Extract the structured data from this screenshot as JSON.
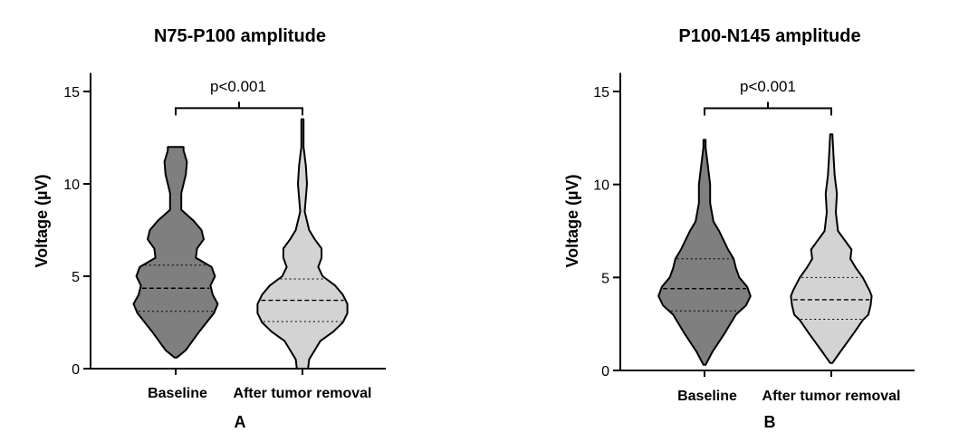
{
  "figure": {
    "colors": {
      "baseline": "#7f7f7f",
      "after": "#d3d3d3",
      "stroke": "#000000"
    }
  },
  "chart_data": [
    {
      "type": "violin",
      "title": "N75-P100 amplitude",
      "ylabel": "Voltage (µV)",
      "xlabel": "",
      "panel_label": "A",
      "ylim": [
        0,
        16
      ],
      "yticks": [
        0,
        5,
        10,
        15
      ],
      "ytick_labels": [
        "0",
        "5",
        "10",
        "15"
      ],
      "grid": false,
      "categories": [
        "Baseline",
        "After tumor removal"
      ],
      "annotation": {
        "text": "p<0.001",
        "between": [
          "Baseline",
          "After tumor removal"
        ],
        "y": 14.1
      },
      "series": [
        {
          "category": "Baseline",
          "min": 0.6,
          "max": 12.0,
          "q1": 3.1,
          "median": 4.35,
          "q3": 5.6,
          "density_profile": [
            [
              0.6,
              0.02
            ],
            [
              1.0,
              0.18
            ],
            [
              2.0,
              0.42
            ],
            [
              3.0,
              0.68
            ],
            [
              3.5,
              0.75
            ],
            [
              4.0,
              0.66
            ],
            [
              4.5,
              0.62
            ],
            [
              5.0,
              0.7
            ],
            [
              5.5,
              0.64
            ],
            [
              6.0,
              0.36
            ],
            [
              6.5,
              0.38
            ],
            [
              7.0,
              0.5
            ],
            [
              7.5,
              0.46
            ],
            [
              8.0,
              0.32
            ],
            [
              8.6,
              0.1
            ],
            [
              9.5,
              0.1
            ],
            [
              10.5,
              0.18
            ],
            [
              11.2,
              0.2
            ],
            [
              11.8,
              0.14
            ],
            [
              12.0,
              0.14
            ]
          ]
        },
        {
          "category": "After tumor removal",
          "min": 0.0,
          "max": 13.5,
          "q1": 2.55,
          "median": 3.7,
          "q3": 4.85,
          "density_profile": [
            [
              0.0,
              0.1
            ],
            [
              0.5,
              0.12
            ],
            [
              1.0,
              0.22
            ],
            [
              1.5,
              0.32
            ],
            [
              2.0,
              0.55
            ],
            [
              2.5,
              0.72
            ],
            [
              3.0,
              0.8
            ],
            [
              3.5,
              0.8
            ],
            [
              4.0,
              0.72
            ],
            [
              4.5,
              0.58
            ],
            [
              5.0,
              0.36
            ],
            [
              5.5,
              0.28
            ],
            [
              6.0,
              0.34
            ],
            [
              6.5,
              0.34
            ],
            [
              7.0,
              0.22
            ],
            [
              7.5,
              0.12
            ],
            [
              8.5,
              0.04
            ],
            [
              10.0,
              0.08
            ],
            [
              11.0,
              0.06
            ],
            [
              12.0,
              0.02
            ],
            [
              13.5,
              0.02
            ]
          ]
        }
      ]
    },
    {
      "type": "violin",
      "title": "P100-N145 amplitude",
      "ylabel": "Voltage (µV)",
      "xlabel": "",
      "panel_label": "B",
      "ylim": [
        0,
        16
      ],
      "yticks": [
        0,
        5,
        10,
        15
      ],
      "ytick_labels": [
        "0",
        "5",
        "10",
        "15"
      ],
      "grid": false,
      "categories": [
        "Baseline",
        "After tumor removal"
      ],
      "annotation": {
        "text": "p<0.001",
        "between": [
          "Baseline",
          "After tumor removal"
        ],
        "y": 14.1
      },
      "series": [
        {
          "category": "Baseline",
          "min": 0.3,
          "max": 12.4,
          "q1": 3.2,
          "median": 4.4,
          "q3": 6.0,
          "density_profile": [
            [
              0.3,
              0.02
            ],
            [
              1.0,
              0.14
            ],
            [
              2.0,
              0.36
            ],
            [
              3.0,
              0.56
            ],
            [
              3.5,
              0.74
            ],
            [
              4.0,
              0.82
            ],
            [
              4.5,
              0.76
            ],
            [
              5.0,
              0.62
            ],
            [
              5.5,
              0.56
            ],
            [
              6.0,
              0.52
            ],
            [
              6.5,
              0.42
            ],
            [
              7.0,
              0.34
            ],
            [
              7.5,
              0.26
            ],
            [
              8.0,
              0.16
            ],
            [
              9.0,
              0.1
            ],
            [
              10.0,
              0.1
            ],
            [
              11.0,
              0.06
            ],
            [
              12.0,
              0.02
            ],
            [
              12.4,
              0.02
            ]
          ]
        },
        {
          "category": "After tumor removal",
          "min": 0.4,
          "max": 12.7,
          "q1": 2.75,
          "median": 3.8,
          "q3": 5.0,
          "density_profile": [
            [
              0.4,
              0.02
            ],
            [
              1.0,
              0.16
            ],
            [
              2.0,
              0.4
            ],
            [
              2.7,
              0.56
            ],
            [
              3.0,
              0.66
            ],
            [
              3.5,
              0.7
            ],
            [
              4.0,
              0.72
            ],
            [
              4.3,
              0.68
            ],
            [
              5.0,
              0.56
            ],
            [
              5.5,
              0.44
            ],
            [
              6.0,
              0.34
            ],
            [
              6.5,
              0.36
            ],
            [
              7.0,
              0.24
            ],
            [
              7.5,
              0.12
            ],
            [
              8.5,
              0.08
            ],
            [
              9.5,
              0.1
            ],
            [
              10.5,
              0.06
            ],
            [
              11.5,
              0.04
            ],
            [
              12.7,
              0.02
            ]
          ]
        }
      ]
    }
  ]
}
